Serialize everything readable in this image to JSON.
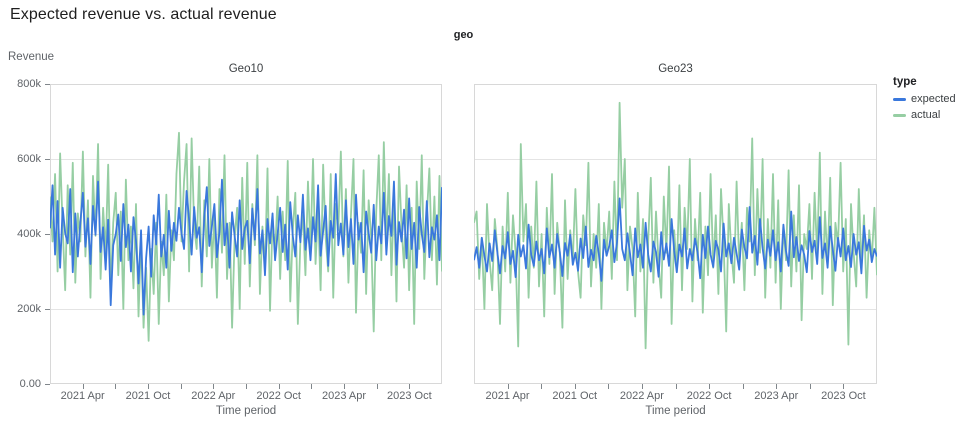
{
  "title": "Expected revenue vs. actual revenue",
  "facet_header": "geo",
  "y_axis": {
    "title": "Revenue",
    "tick_labels": [
      "800k",
      "600k",
      "400k",
      "200k",
      "0.00"
    ]
  },
  "x_axis": {
    "title": "Time period",
    "tick_labels": [
      "2021 Apr",
      "2021 Oct",
      "2022 Apr",
      "2022 Oct",
      "2023 Apr",
      "2023 Oct"
    ]
  },
  "legend": {
    "title": "type",
    "items": [
      {
        "label": "expected",
        "color": "#3A78DC"
      },
      {
        "label": "actual",
        "color": "#96CEA3"
      }
    ]
  },
  "chart_data": [
    {
      "type": "line",
      "title": "Geo10",
      "xlabel": "Time period",
      "ylabel": "Revenue",
      "x_interval": "weekly",
      "x_start": "2021 Jan",
      "x_end": "2023 Dec",
      "x_tick_labels": [
        "2021 Apr",
        "2021 Oct",
        "2022 Apr",
        "2022 Oct",
        "2023 Apr",
        "2023 Oct"
      ],
      "ylim": [
        0,
        800000
      ],
      "value_unit": "thousands",
      "grid": "horizontal",
      "series": [
        {
          "name": "expected",
          "values": [
            415,
            530,
            345,
            488,
            310,
            470,
            402,
            375,
            520,
            298,
            455,
            340,
            430,
            510,
            366,
            442,
            320,
            475,
            398,
            540,
            352,
            418,
            305,
            438,
            210,
            370,
            400,
            452,
            328,
            480,
            365,
            425,
            300,
            445,
            382,
            268,
            410,
            185,
            335,
            420,
            286,
            450,
            372,
            505,
            340,
            398,
            310,
            462,
            355,
            430,
            382,
            470,
            402,
            360,
            515,
            438,
            345,
            472,
            390,
            418,
            298,
            445,
            525,
            368,
            420,
            480,
            338,
            405,
            545,
            370,
            428,
            310,
            458,
            395,
            340,
            490,
            360,
            415,
            435,
            322,
            468,
            385,
            520,
            348,
            410,
            290,
            440,
            375,
            455,
            330,
            400,
            470,
            352,
            425,
            305,
            485,
            395,
            340,
            450,
            378,
            505,
            358,
            415,
            330,
            445,
            380,
            530,
            342,
            408,
            475,
            315,
            435,
            390,
            560,
            370,
            428,
            345,
            490,
            365,
            440,
            320,
            505,
            385,
            430,
            298,
            460,
            402,
            350,
            478,
            330,
            420,
            375,
            510,
            345,
            448,
            395,
            540,
            318,
            432,
            380,
            465,
            335,
            495,
            360,
            430,
            310,
            472,
            400,
            352,
            488,
            338,
            418,
            385,
            450,
            330,
            525
          ]
        },
        {
          "name": "actual",
          "values": [
            500,
            380,
            560,
            300,
            615,
            420,
            250,
            530,
            345,
            590,
            270,
            455,
            380,
            620,
            340,
            490,
            230,
            555,
            395,
            640,
            280,
            470,
            350,
            585,
            250,
            430,
            510,
            290,
            460,
            200,
            545,
            330,
            420,
            255,
            480,
            180,
            390,
            150,
            310,
            115,
            360,
            240,
            430,
            160,
            380,
            290,
            505,
            220,
            410,
            330,
            560,
            670,
            380,
            540,
            640,
            300,
            655,
            420,
            360,
            580,
            260,
            490,
            340,
            600,
            310,
            450,
            230,
            520,
            350,
            610,
            280,
            430,
            150,
            390,
            470,
            200,
            550,
            320,
            590,
            260,
            480,
            370,
            610,
            240,
            420,
            310,
            575,
            195,
            440,
            350,
            500,
            280,
            460,
            330,
            595,
            220,
            410,
            510,
            160,
            380,
            450,
            290,
            540,
            360,
            600,
            320,
            470,
            250,
            585,
            390,
            300,
            560,
            230,
            480,
            410,
            620,
            340,
            520,
            270,
            450,
            600,
            190,
            430,
            350,
            570,
            240,
            490,
            390,
            140,
            460,
            610,
            330,
            645,
            380,
            560,
            290,
            500,
            220,
            580,
            420,
            310,
            530,
            250,
            470,
            160,
            540,
            360,
            610,
            280,
            450,
            575,
            330,
            500,
            265,
            555,
            300
          ]
        }
      ]
    },
    {
      "type": "line",
      "title": "Geo23",
      "xlabel": "Time period",
      "ylabel": "Revenue",
      "x_interval": "weekly",
      "x_start": "2021 Jan",
      "x_end": "2023 Dec",
      "x_tick_labels": [
        "2021 Apr",
        "2021 Oct",
        "2022 Apr",
        "2022 Oct",
        "2023 Apr",
        "2023 Oct"
      ],
      "ylim": [
        0,
        800000
      ],
      "value_unit": "thousands",
      "grid": "horizontal",
      "series": [
        {
          "name": "expected",
          "values": [
            330,
            365,
            310,
            390,
            342,
            300,
            375,
            328,
            410,
            350,
            295,
            368,
            335,
            405,
            320,
            355,
            285,
            398,
            340,
            370,
            308,
            425,
            345,
            315,
            380,
            330,
            360,
            295,
            415,
            338,
            372,
            310,
            400,
            352,
            288,
            376,
            342,
            398,
            318,
            350,
            302,
            388,
            336,
            420,
            312,
            358,
            330,
            395,
            348,
            275,
            385,
            342,
            368,
            410,
            325,
            378,
            495,
            360,
            330,
            402,
            348,
            290,
            415,
            338,
            372,
            310,
            430,
            345,
            300,
            380,
            352,
            286,
            405,
            332,
            375,
            315,
            440,
            355,
            298,
            372,
            340,
            415,
            308,
            360,
            330,
            388,
            352,
            282,
            398,
            336,
            420,
            345,
            312,
            382,
            358,
            300,
            428,
            340,
            375,
            322,
            390,
            348,
            305,
            412,
            365,
            335,
            472,
            350,
            395,
            318,
            440,
            362,
            308,
            385,
            342,
            410,
            330,
            378,
            300,
            425,
            355,
            315,
            460,
            338,
            392,
            328,
            370,
            345,
            298,
            408,
            352,
            382,
            320,
            445,
            336,
            375,
            310,
            420,
            358,
            302,
            390,
            340,
            415,
            330,
            368,
            312,
            400,
            345,
            378,
            295,
            422,
            356,
            385,
            325,
            360,
            340
          ]
        },
        {
          "name": "actual",
          "values": [
            430,
            460,
            280,
            390,
            200,
            480,
            330,
            250,
            440,
            360,
            160,
            420,
            300,
            510,
            270,
            450,
            350,
            100,
            640,
            380,
            480,
            230,
            420,
            310,
            540,
            260,
            400,
            180,
            470,
            320,
            560,
            240,
            430,
            350,
            150,
            490,
            280,
            410,
            330,
            520,
            300,
            230,
            450,
            370,
            590,
            260,
            400,
            310,
            480,
            200,
            430,
            350,
            460,
            280,
            540,
            330,
            750,
            470,
            600,
            250,
            420,
            360,
            180,
            510,
            300,
            440,
            95,
            380,
            550,
            270,
            460,
            320,
            230,
            500,
            350,
            580,
            160,
            410,
            300,
            530,
            250,
            470,
            360,
            600,
            220,
            440,
            330,
            510,
            190,
            420,
            290,
            560,
            310,
            450,
            240,
            520,
            380,
            140,
            480,
            350,
            270,
            540,
            320,
            430,
            250,
            470,
            380,
            655,
            290,
            520,
            350,
            600,
            230,
            440,
            310,
            560,
            270,
            490,
            200,
            420,
            330,
            570,
            260,
            450,
            300,
            530,
            170,
            400,
            360,
            480,
            280,
            510,
            340,
            617,
            240,
            460,
            320,
            550,
            210,
            430,
            370,
            590,
            300,
            440,
            105,
            480,
            350,
            260,
            520,
            310,
            450,
            230,
            410,
            330,
            470,
            290
          ]
        }
      ]
    }
  ],
  "style": {
    "grid_color": "#e4e4e4",
    "border_color": "#d8d8d8",
    "tick_color": "#80868b"
  }
}
